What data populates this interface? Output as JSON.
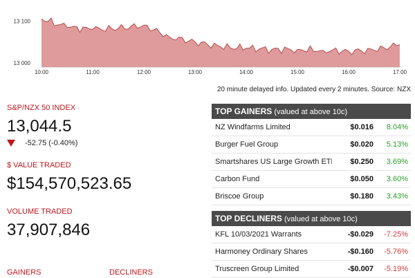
{
  "chart_data": {
    "type": "area",
    "x": [
      "10:00",
      "10:30",
      "11:00",
      "11:30",
      "12:00",
      "12:30",
      "13:00",
      "13:30",
      "14:00",
      "14:30",
      "15:00",
      "15:30",
      "16:00",
      "16:30",
      "17:00"
    ],
    "values": [
      13105,
      13085,
      13080,
      13082,
      13090,
      13062,
      13050,
      13038,
      13035,
      13032,
      13032,
      13030,
      13028,
      13030,
      13044
    ],
    "series": [
      {
        "values": [
          13105,
          13085,
          13080,
          13082,
          13090,
          13062,
          13050,
          13038,
          13035,
          13032,
          13032,
          13030,
          13028,
          13030,
          13044
        ]
      }
    ],
    "x_tick_labels": [
      "10:00",
      "11:00",
      "12:00",
      "13:00",
      "14:00",
      "15:00",
      "16:00",
      "17:00"
    ],
    "y_tick_labels": [
      "13 100",
      "13 000"
    ],
    "y_ticks": [
      13100,
      13000
    ],
    "ylim": [
      12990,
      13150
    ],
    "fill_color": "#d98a8a",
    "line_color": "#b84b4b",
    "grid": false
  },
  "source_note": "20 minute delayed info. Updated every 2 minutes. Source: NZX",
  "index": {
    "label": "S&P/NZX 50 INDEX",
    "value": "13,044.5",
    "change": "-52.75 (-0.40%)"
  },
  "value_traded": {
    "label": "$ VALUE TRADED",
    "value": "$154,570,523.65"
  },
  "volume_traded": {
    "label": "VOLUME TRADED",
    "value": "37,907,846"
  },
  "bottom": {
    "gainers": "GAINERS",
    "decliners": "DECLINERS"
  },
  "top_gainers": {
    "title": "TOP GAINERS",
    "subtitle": "(valued at above 10c)",
    "rows": [
      {
        "name": "NZ Windfarms Limited",
        "price": "$0.016",
        "pct": "8.04%"
      },
      {
        "name": "Burger Fuel Group",
        "price": "$0.020",
        "pct": "5.13%"
      },
      {
        "name": "Smartshares US Large Growth ETF",
        "price": "$0.250",
        "pct": "3.69%"
      },
      {
        "name": "Carbon Fund",
        "price": "$0.050",
        "pct": "3.60%"
      },
      {
        "name": "Briscoe Group",
        "price": "$0.180",
        "pct": "3.43%"
      }
    ]
  },
  "top_decliners": {
    "title": "TOP DECLINERS",
    "subtitle": "(valued at above 10c)",
    "rows": [
      {
        "name": "KFL 10/03/2021 Warrants",
        "price": "-$0.029",
        "pct": "-7.25%"
      },
      {
        "name": "Harmoney Ordinary Shares",
        "price": "-$0.160",
        "pct": "-5.76%"
      },
      {
        "name": "Truscreen Group Limited",
        "price": "-$0.007",
        "pct": "-5.19%"
      }
    ]
  },
  "colors": {
    "accent_red": "#c0161d",
    "up_green": "#2e9a2e",
    "down_red": "#d03b3b",
    "header_bg": "#4a4a4a"
  }
}
